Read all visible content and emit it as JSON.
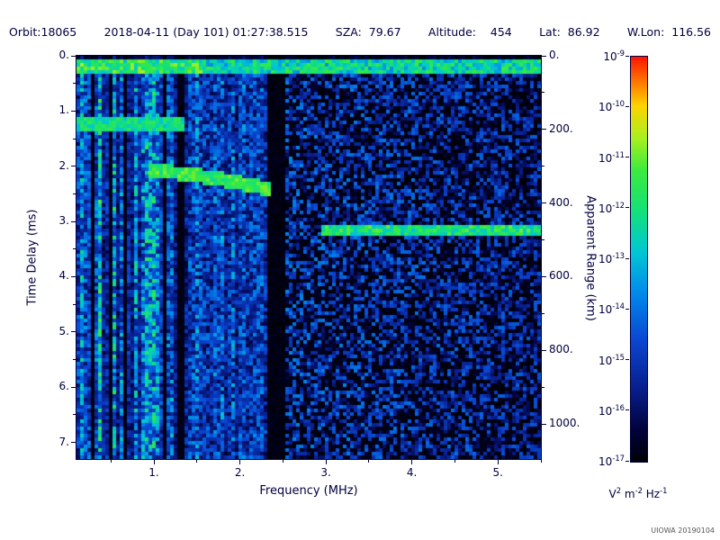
{
  "header": {
    "fields": [
      "Orbit:18065",
      "2018-04-11 (Day 101) 01:27:38.515",
      "SZA:  79.67",
      "Altitude:    454",
      "Lat:  86.92",
      "W.Lon:  116.56"
    ]
  },
  "chart_data": {
    "type": "heatmap",
    "title": "",
    "xlabel": "Frequency (MHz)",
    "ylabel_left": "Time Delay (ms)",
    "ylabel_right": "Apparent Range (km)",
    "x_range_mhz": [
      0.1,
      5.5
    ],
    "x_ticks": [
      1,
      2,
      3,
      4,
      5
    ],
    "x_tick_labels": [
      "1.",
      "2.",
      "3.",
      "4.",
      "5."
    ],
    "y_range_ms": [
      0,
      7.3
    ],
    "y_ticks": [
      0,
      1,
      2,
      3,
      4,
      5,
      6,
      7
    ],
    "y_tick_labels": [
      "0.",
      "1.",
      "2.",
      "3.",
      "4.",
      "5.",
      "6.",
      "7."
    ],
    "right_range_km": [
      0,
      1095
    ],
    "right_ticks": [
      0,
      200,
      400,
      600,
      800,
      1000
    ],
    "right_tick_labels": [
      "0.",
      "200.",
      "400.",
      "600.",
      "800.",
      "1000."
    ],
    "colorbar": {
      "scale": "log10",
      "base": "10",
      "tick_exponents": [
        "-9",
        "-10",
        "-11",
        "-12",
        "-13",
        "-14",
        "-15",
        "-16",
        "-17"
      ],
      "unit_parts": [
        [
          "V",
          "2"
        ],
        [
          "m",
          "-2"
        ],
        [
          "Hz",
          "-1"
        ]
      ]
    },
    "features": {
      "surface_band_delay_ms": [
        0.05,
        0.34
      ],
      "plasma_striation_freq_mhz": [
        0.1,
        1.35
      ],
      "striation_bright_row_delay_ms": 1.25,
      "mid_noise_freq_mhz": [
        1.35,
        2.32
      ],
      "quiet_gap_freq_mhz": [
        2.32,
        2.54
      ],
      "ionosphere_trace": {
        "freq_mhz": [
          0.95,
          2.38
        ],
        "delay_start_ms": 2.08,
        "delay_end_ms": 2.42
      },
      "ground_trace": {
        "freq_mhz": [
          2.95,
          5.5
        ],
        "delay_ms": 3.16
      }
    },
    "colormap_stops": [
      [
        0.0,
        0,
        0,
        6
      ],
      [
        0.08,
        2,
        2,
        60
      ],
      [
        0.18,
        8,
        30,
        140
      ],
      [
        0.3,
        10,
        70,
        210
      ],
      [
        0.42,
        0,
        140,
        235
      ],
      [
        0.52,
        0,
        200,
        210
      ],
      [
        0.62,
        20,
        225,
        120
      ],
      [
        0.72,
        60,
        235,
        60
      ],
      [
        0.8,
        170,
        240,
        30
      ],
      [
        0.88,
        255,
        210,
        0
      ],
      [
        1.0,
        255,
        20,
        0
      ]
    ],
    "noise_seed": 18065
  },
  "watermark": "UIOWA 20190104",
  "colors": {
    "text": "#000040",
    "background": "#ffffff",
    "plot_background": "#000000"
  }
}
